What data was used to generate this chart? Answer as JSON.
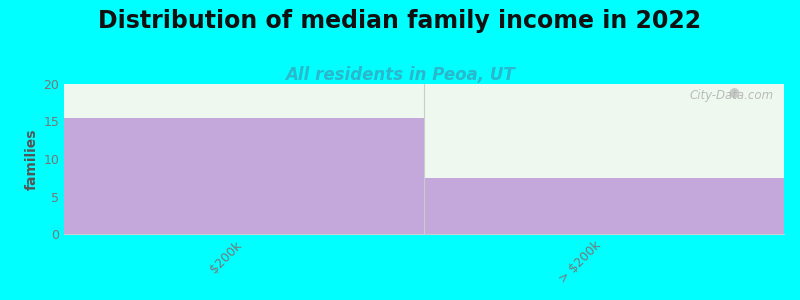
{
  "title": "Distribution of median family income in 2022",
  "subtitle": "All residents in Peoa, UT",
  "categories": [
    "$200k",
    "> $200k"
  ],
  "values": [
    15.5,
    7.5
  ],
  "bar_color": "#c4a8dc",
  "background_color": "#00ffff",
  "plot_bg_color": "#eef8ee",
  "ylabel": "families",
  "ylim": [
    0,
    20
  ],
  "yticks": [
    0,
    5,
    10,
    15,
    20
  ],
  "title_fontsize": 17,
  "subtitle_fontsize": 12,
  "subtitle_color": "#29b8cc",
  "ylabel_fontsize": 10,
  "watermark_text": "City-Data.com",
  "watermark_color": "#b0b0b0",
  "tick_label_fontsize": 9,
  "tick_label_color": "#777777"
}
